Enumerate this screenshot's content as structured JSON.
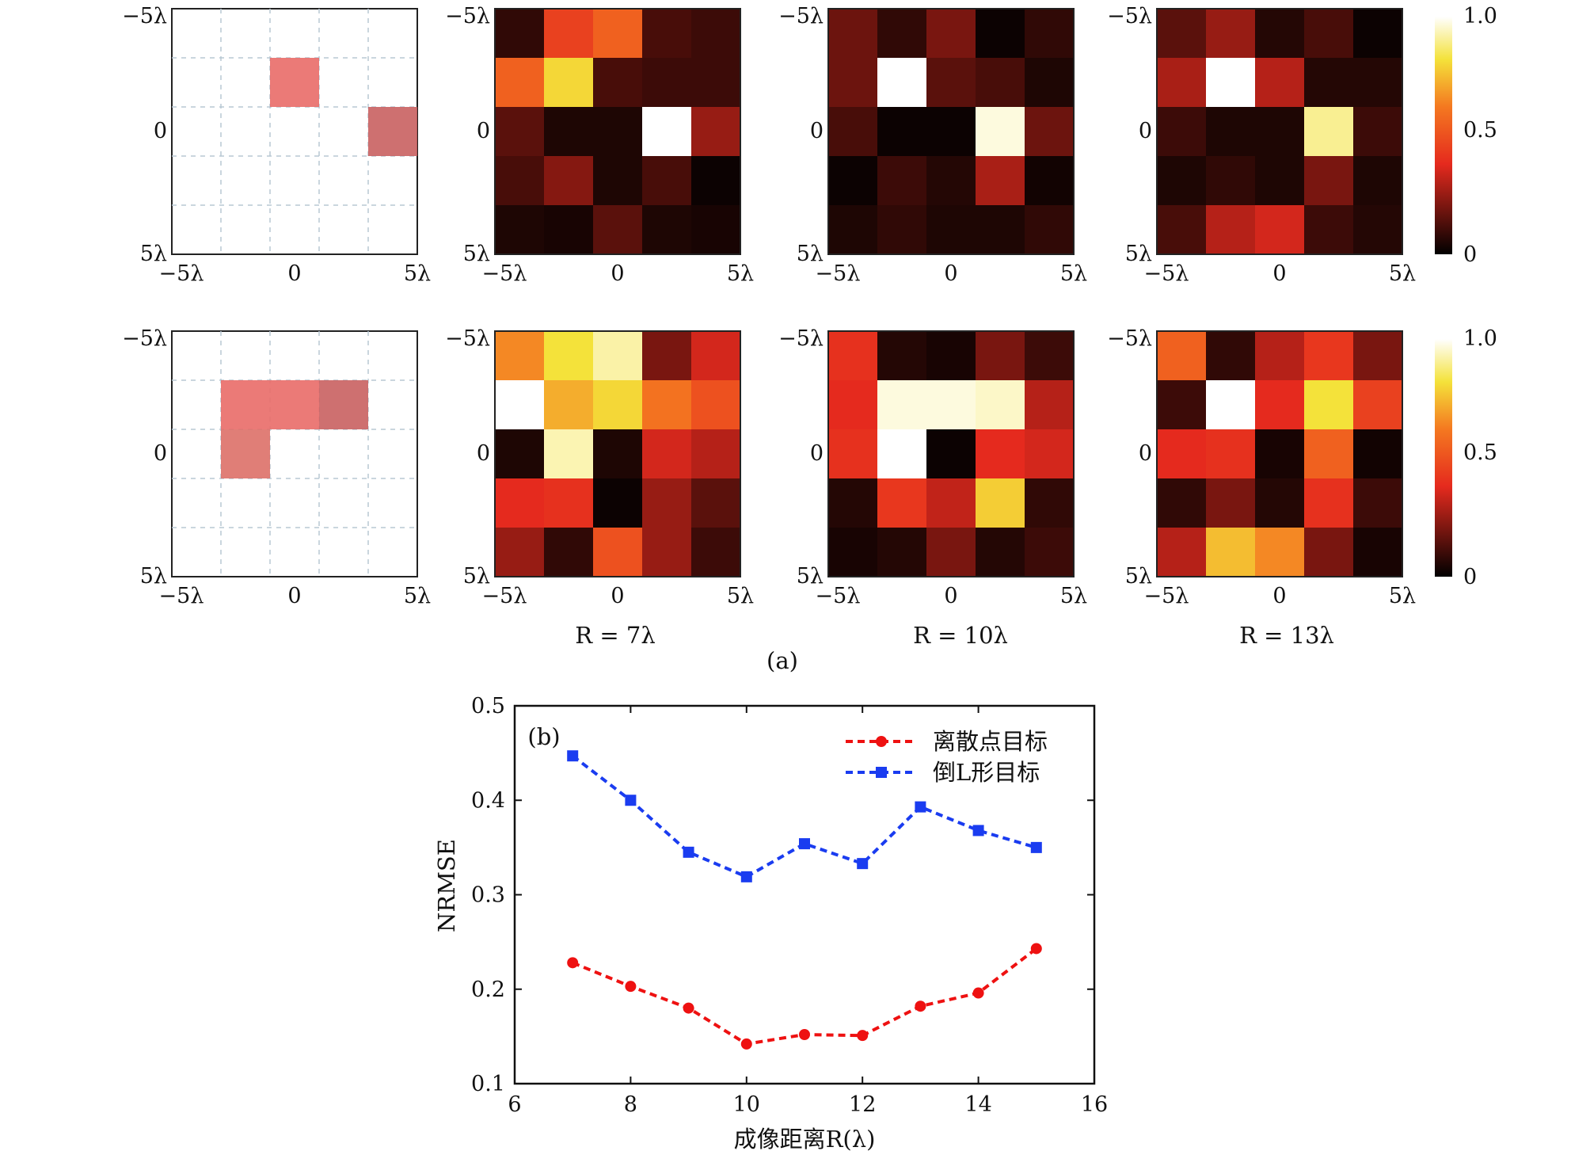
{
  "part_a": {
    "label": "(a)",
    "axis_tick_labels": [
      "−5λ",
      "0",
      "5λ"
    ],
    "column_labels": [
      "",
      "R = 7λ",
      "R = 10λ",
      "R = 13λ"
    ],
    "colorbar": {
      "ticks": [
        "1.0",
        "0.5",
        "0"
      ],
      "scale": "hot (black → red → yellow → white)"
    },
    "rows": [
      {
        "target": {
          "name": "离散点目标",
          "cells": [
            [
              1,
              2
            ],
            [
              2,
              4
            ]
          ],
          "intensity": [
            [
              1,
              2,
              0.85
            ],
            [
              2,
              4,
              0.7
            ]
          ]
        },
        "maps": [
          {
            "R": "7λ",
            "values": [
              [
                0.08,
                0.45,
                0.55,
                0.12,
                0.1
              ],
              [
                0.55,
                0.8,
                0.12,
                0.1,
                0.1
              ],
              [
                0.15,
                0.05,
                0.05,
                1.0,
                0.25
              ],
              [
                0.12,
                0.22,
                0.05,
                0.12,
                0.02
              ],
              [
                0.05,
                0.04,
                0.15,
                0.05,
                0.04
              ]
            ]
          },
          {
            "R": "10λ",
            "values": [
              [
                0.18,
                0.08,
                0.2,
                0.02,
                0.08
              ],
              [
                0.18,
                1.0,
                0.15,
                0.12,
                0.05
              ],
              [
                0.12,
                0.02,
                0.02,
                0.97,
                0.18
              ],
              [
                0.02,
                0.1,
                0.06,
                0.28,
                0.03
              ],
              [
                0.05,
                0.08,
                0.05,
                0.05,
                0.08
              ]
            ]
          },
          {
            "R": "13λ",
            "values": [
              [
                0.15,
                0.25,
                0.06,
                0.12,
                0.02
              ],
              [
                0.28,
                1.0,
                0.3,
                0.06,
                0.06
              ],
              [
                0.1,
                0.05,
                0.05,
                0.9,
                0.1
              ],
              [
                0.05,
                0.08,
                0.05,
                0.2,
                0.05
              ],
              [
                0.12,
                0.3,
                0.35,
                0.1,
                0.06
              ]
            ]
          }
        ]
      },
      {
        "target": {
          "name": "倒L形目标",
          "cells": [
            [
              1,
              1
            ],
            [
              1,
              2
            ],
            [
              1,
              3
            ],
            [
              2,
              1
            ]
          ],
          "intensity": [
            [
              1,
              1,
              0.8
            ],
            [
              1,
              2,
              0.8
            ],
            [
              1,
              3,
              0.7
            ],
            [
              2,
              1,
              0.75
            ]
          ]
        },
        "maps": [
          {
            "R": "7λ",
            "values": [
              [
                0.65,
                0.82,
                0.92,
                0.2,
                0.35
              ],
              [
                1.0,
                0.72,
                0.8,
                0.6,
                0.5
              ],
              [
                0.05,
                0.93,
                0.05,
                0.35,
                0.3
              ],
              [
                0.38,
                0.4,
                0.02,
                0.25,
                0.15
              ],
              [
                0.25,
                0.08,
                0.5,
                0.25,
                0.1
              ]
            ]
          },
          {
            "R": "10λ",
            "values": [
              [
                0.4,
                0.06,
                0.04,
                0.2,
                0.1
              ],
              [
                0.38,
                0.97,
                0.97,
                0.95,
                0.3
              ],
              [
                0.4,
                1.0,
                0.02,
                0.38,
                0.35
              ],
              [
                0.06,
                0.42,
                0.32,
                0.78,
                0.08
              ],
              [
                0.04,
                0.06,
                0.2,
                0.06,
                0.1
              ]
            ]
          },
          {
            "R": "13λ",
            "values": [
              [
                0.55,
                0.08,
                0.3,
                0.42,
                0.2
              ],
              [
                0.1,
                1.0,
                0.38,
                0.82,
                0.45
              ],
              [
                0.38,
                0.4,
                0.04,
                0.55,
                0.03
              ],
              [
                0.08,
                0.2,
                0.06,
                0.4,
                0.1
              ],
              [
                0.3,
                0.75,
                0.65,
                0.2,
                0.04
              ]
            ]
          }
        ]
      }
    ]
  },
  "chart_data": {
    "type": "line",
    "panel_label": "(b)",
    "xlabel": "成像距离R(λ)",
    "ylabel": "NRMSE",
    "xlim": [
      6,
      16
    ],
    "ylim": [
      0.1,
      0.5
    ],
    "xticks": [
      6,
      8,
      10,
      12,
      14,
      16
    ],
    "yticks": [
      0.1,
      0.2,
      0.3,
      0.4,
      0.5
    ],
    "x": [
      7,
      8,
      9,
      10,
      11,
      12,
      13,
      14,
      15
    ],
    "legend_position": "top-right",
    "series": [
      {
        "name": "离散点目标",
        "color": "#ee1111",
        "marker": "circle",
        "line": "dashed",
        "values": [
          0.228,
          0.203,
          0.18,
          0.142,
          0.152,
          0.151,
          0.182,
          0.196,
          0.243
        ]
      },
      {
        "name": "倒L形目标",
        "color": "#1a3cf0",
        "marker": "square",
        "line": "dashed",
        "values": [
          0.447,
          0.4,
          0.345,
          0.319,
          0.354,
          0.333,
          0.393,
          0.368,
          0.35
        ]
      }
    ]
  }
}
